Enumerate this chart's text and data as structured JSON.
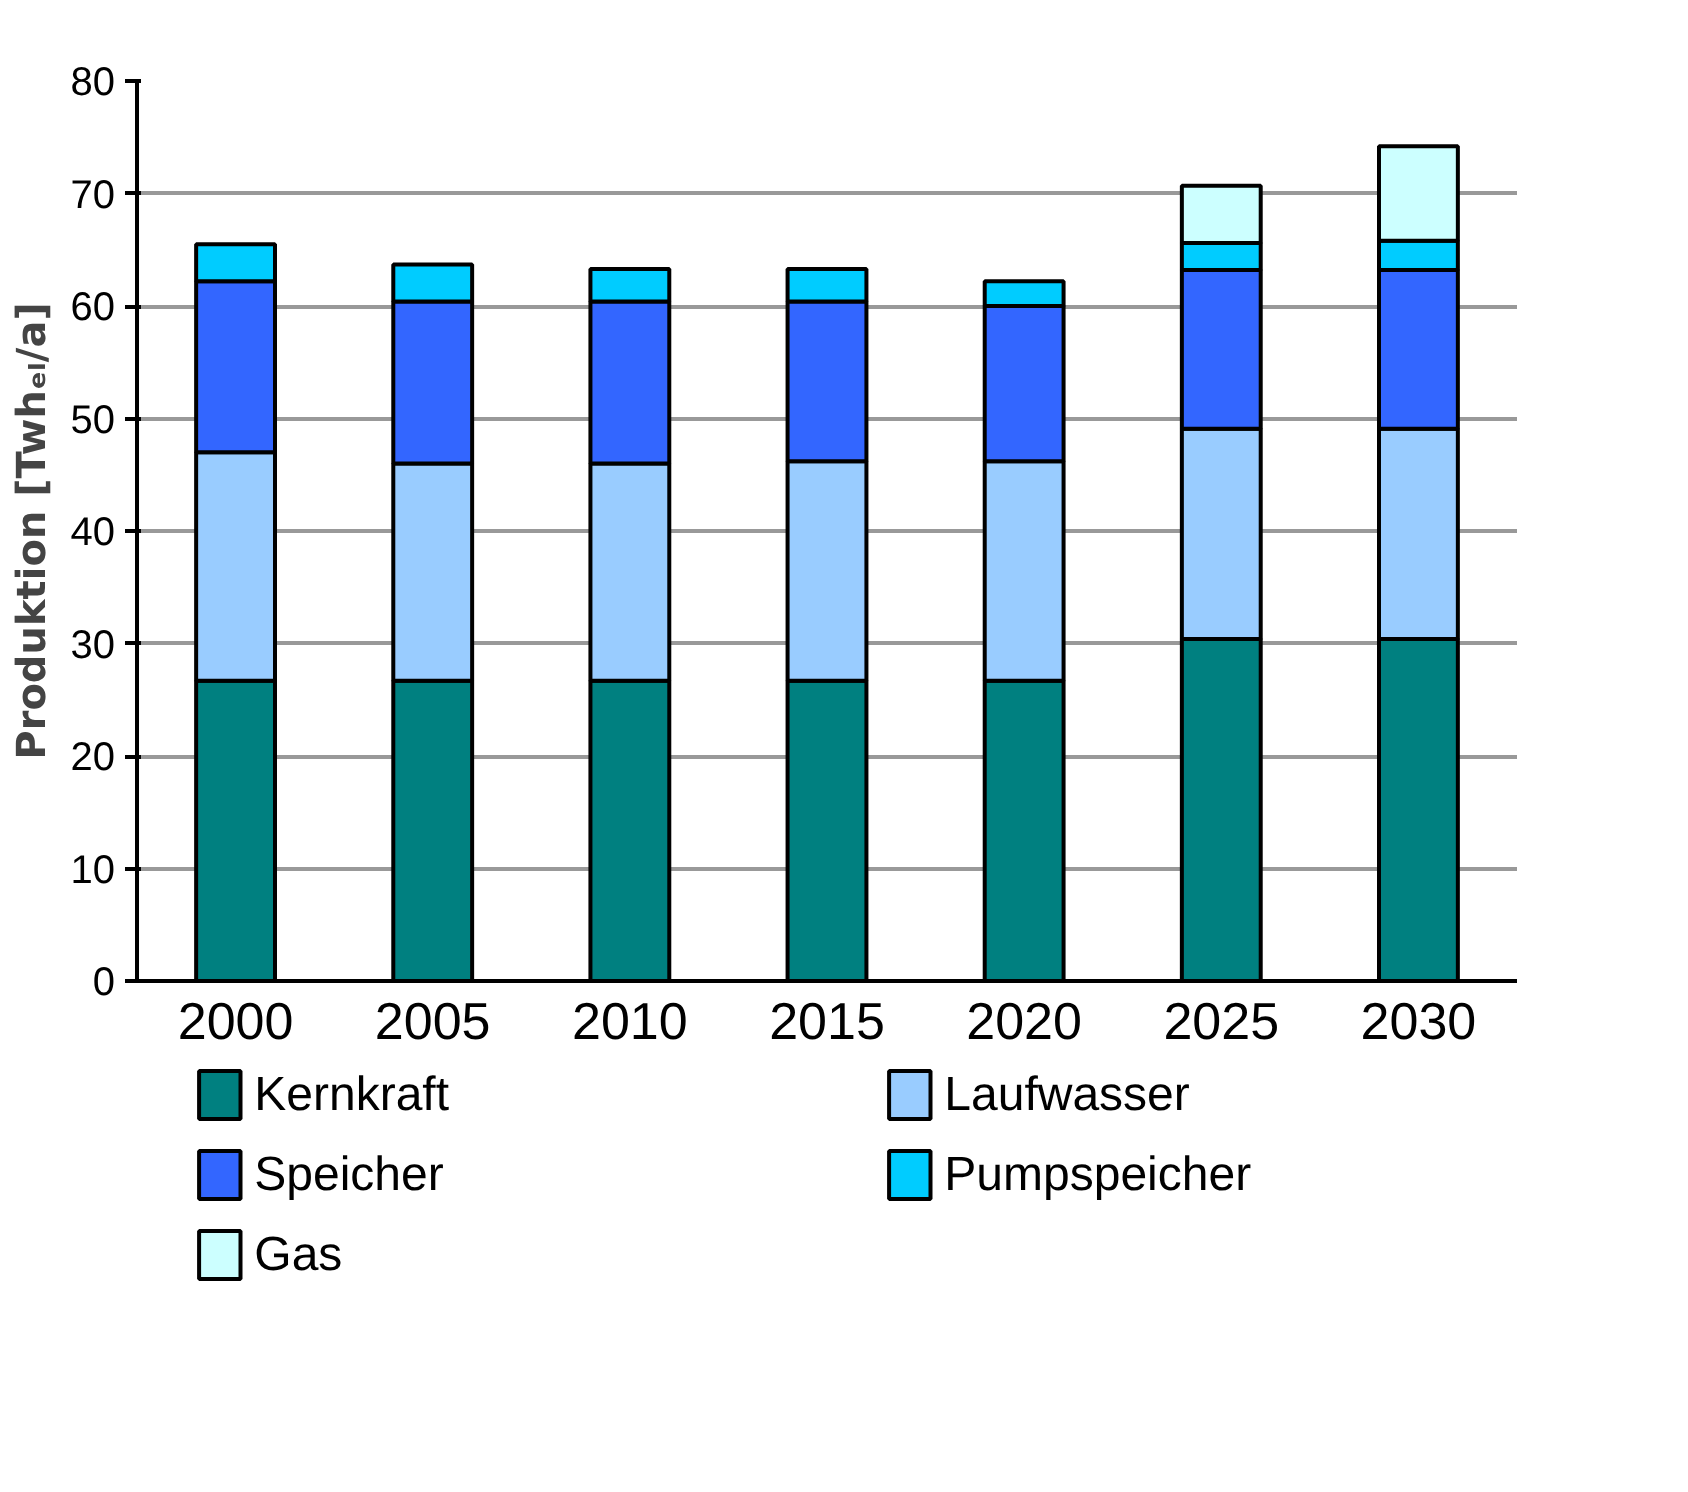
{
  "chart_data": {
    "type": "bar",
    "stacked": true,
    "ylabel": "Produktion [Twhₑₗ/a]",
    "categories": [
      "2000",
      "2005",
      "2010",
      "2015",
      "2020",
      "2025",
      "2030"
    ],
    "series": [
      {
        "name": "Kernkraft",
        "color": "#008080",
        "values": [
          26.7,
          26.7,
          26.7,
          26.7,
          26.7,
          30.4,
          30.4
        ]
      },
      {
        "name": "Laufwasser",
        "color": "#99ccff",
        "values": [
          20.3,
          19.3,
          19.3,
          19.5,
          19.5,
          18.7,
          18.7
        ]
      },
      {
        "name": "Speicher",
        "color": "#3366ff",
        "values": [
          15.2,
          14.4,
          14.4,
          14.2,
          13.8,
          14.1,
          14.1
        ]
      },
      {
        "name": "Pumpspeicher",
        "color": "#00ccff",
        "values": [
          3.3,
          3.3,
          2.9,
          2.9,
          2.2,
          2.4,
          2.6
        ]
      },
      {
        "name": "Gas",
        "color": "#ccffff",
        "values": [
          null,
          null,
          null,
          null,
          null,
          5.1,
          8.4
        ]
      }
    ],
    "ylim": [
      0,
      80
    ],
    "yticks": [
      0,
      10,
      20,
      30,
      40,
      50,
      60,
      70,
      80
    ],
    "grid": "y",
    "legend": "bottom"
  }
}
